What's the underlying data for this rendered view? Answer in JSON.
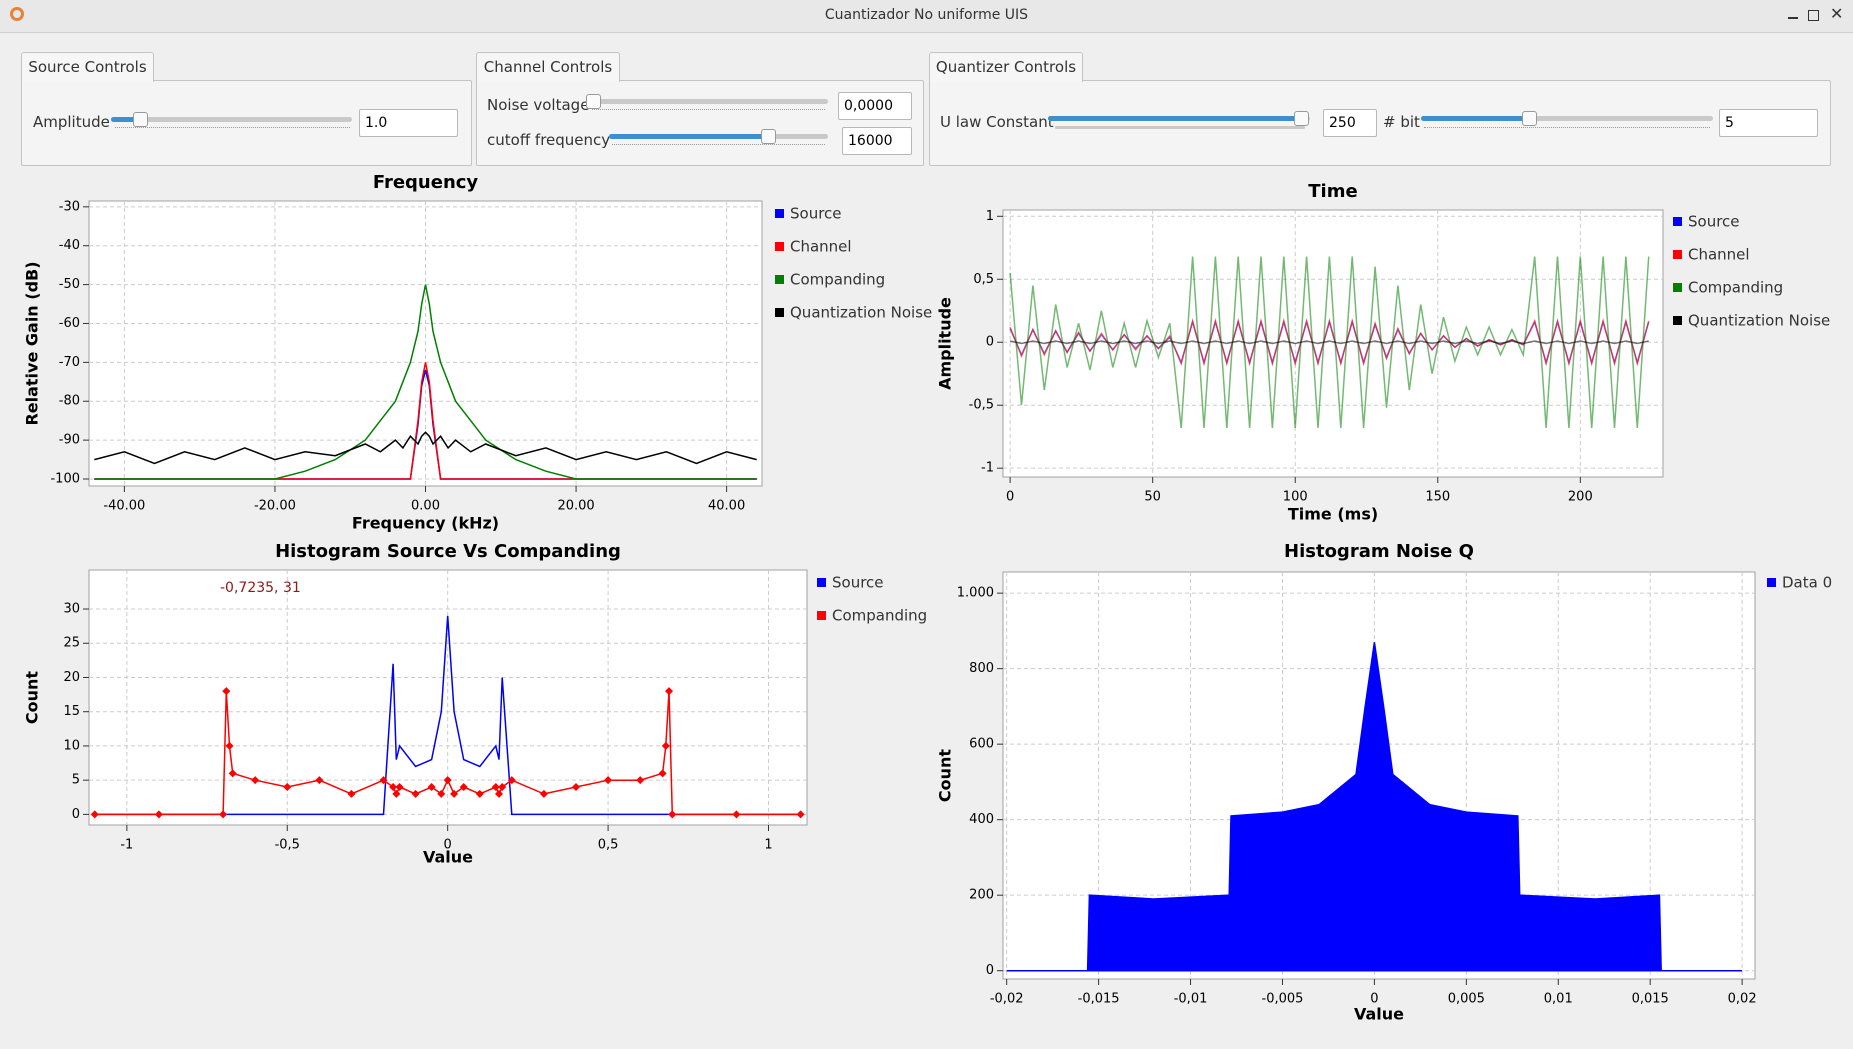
{
  "window": {
    "title": "Cuantizador No uniforme UIS"
  },
  "source_controls": {
    "tab": "Source Controls",
    "amplitude_label": "Amplitude",
    "amplitude_value": "1.0"
  },
  "channel_controls": {
    "tab": "Channel Controls",
    "noise_label": "Noise voltage",
    "noise_value": "0,0000",
    "cutoff_label": "cutoff frequency",
    "cutoff_value": "16000"
  },
  "quantizer_controls": {
    "tab": "Quantizer Controls",
    "ulaw_label": "U law Constant",
    "ulaw_value": "250",
    "bit_label": "# bit",
    "bit_value": "5"
  },
  "chart_data": [
    {
      "type": "line",
      "title": "Frequency",
      "x_label": "Frequency (kHz)",
      "y_label": "Relative Gain (dB)",
      "grid": true,
      "xlim": [
        -44.7,
        44.7
      ],
      "ylim": [
        -101.8,
        -28.5
      ],
      "xticks": [
        {
          "value": -40,
          "label": "-40.00"
        },
        {
          "value": -20,
          "label": "-20.00"
        },
        {
          "value": 0,
          "label": "0.00"
        },
        {
          "value": 20,
          "label": "20.00"
        },
        {
          "value": 40,
          "label": "40.00"
        }
      ],
      "yticks": [
        -30,
        -40,
        -50,
        -60,
        -70,
        -80,
        -90,
        -100
      ],
      "x": [
        -44,
        -40,
        -36,
        -32,
        -28,
        -24,
        -20,
        -16,
        -12,
        -8,
        -6,
        -4,
        -3,
        -2,
        -1,
        -0.5,
        0,
        0.5,
        1,
        2,
        3,
        4,
        6,
        8,
        12,
        16,
        20,
        24,
        28,
        32,
        36,
        40,
        44
      ],
      "series": [
        {
          "name": "Source",
          "color": "#0000ff",
          "values": [
            -100,
            -100,
            -100,
            -100,
            -100,
            -100,
            -100,
            -100,
            -100,
            -100,
            -100,
            -100,
            -100,
            -100,
            -86,
            -76,
            -72,
            -76,
            -86,
            -100,
            -100,
            -100,
            -100,
            -100,
            -100,
            -100,
            -100,
            -100,
            -100,
            -100,
            -100,
            -100,
            -100
          ]
        },
        {
          "name": "Channel",
          "color": "#ff0000",
          "values": [
            -100,
            -100,
            -100,
            -100,
            -100,
            -100,
            -100,
            -100,
            -100,
            -100,
            -100,
            -100,
            -100,
            -100,
            -85,
            -75,
            -70,
            -75,
            -85,
            -100,
            -100,
            -100,
            -100,
            -100,
            -100,
            -100,
            -100,
            -100,
            -100,
            -100,
            -100,
            -100,
            -100
          ]
        },
        {
          "name": "Companding",
          "color": "#008000",
          "values": [
            -100,
            -100,
            -100,
            -100,
            -100,
            -100,
            -100,
            -98,
            -95,
            -90,
            -85,
            -80,
            -75,
            -70,
            -62,
            -55,
            -50,
            -55,
            -62,
            -70,
            -75,
            -80,
            -85,
            -90,
            -95,
            -98,
            -100,
            -100,
            -100,
            -100,
            -100,
            -100,
            -100
          ]
        },
        {
          "name": "Quantization Noise",
          "color": "#000000",
          "values": [
            -95,
            -93,
            -96,
            -93,
            -95,
            -92,
            -95,
            -93,
            -94,
            -91,
            -93,
            -90,
            -92,
            -89,
            -91,
            -89,
            -88,
            -89,
            -91,
            -89,
            -92,
            -90,
            -93,
            -91,
            -94,
            -92,
            -95,
            -93,
            -95,
            -93,
            -96,
            -93,
            -95
          ]
        }
      ]
    },
    {
      "type": "line",
      "title": "Time",
      "x_label": "Time (ms)",
      "y_label": "Amplitude",
      "grid": true,
      "xlim": [
        -2.5,
        229
      ],
      "ylim": [
        -1.07,
        1.05
      ],
      "xticks": [
        0,
        50,
        100,
        150,
        200
      ],
      "yticks": [
        1,
        {
          "value": 0.5,
          "label": "0,5"
        },
        0,
        {
          "value": -0.5,
          "label": "-0,5"
        },
        -1
      ],
      "x": [
        0,
        4,
        8,
        12,
        16,
        20,
        24,
        28,
        32,
        36,
        40,
        44,
        48,
        52,
        56,
        60,
        64,
        68,
        72,
        76,
        80,
        84,
        88,
        92,
        96,
        100,
        104,
        108,
        112,
        116,
        120,
        124,
        128,
        132,
        136,
        140,
        144,
        148,
        152,
        156,
        160,
        164,
        168,
        172,
        176,
        180,
        184,
        188,
        192,
        196,
        200,
        204,
        208,
        212,
        216,
        220,
        224
      ],
      "series": [
        {
          "name": "Source",
          "color": "#0000ff",
          "values": [
            0.11,
            -0.1,
            0.1,
            -0.09,
            0.09,
            -0.08,
            0.07,
            -0.07,
            0.06,
            -0.06,
            0.06,
            -0.05,
            0.05,
            -0.05,
            0.04,
            -0.16,
            0.16,
            -0.16,
            0.16,
            -0.16,
            0.16,
            -0.16,
            0.16,
            -0.16,
            0.16,
            -0.16,
            0.16,
            -0.16,
            0.16,
            -0.16,
            0.16,
            -0.16,
            0.14,
            -0.12,
            0.1,
            -0.09,
            0.07,
            -0.06,
            0.05,
            -0.04,
            0.03,
            -0.03,
            0.02,
            -0.02,
            0.02,
            -0.02,
            0.16,
            -0.16,
            0.16,
            -0.16,
            0.16,
            -0.16,
            0.16,
            -0.16,
            0.16,
            -0.16,
            0.16
          ]
        },
        {
          "name": "Channel",
          "color": "#ff0000",
          "values": [
            0.12,
            -0.11,
            0.1,
            -0.1,
            0.09,
            -0.08,
            0.08,
            -0.07,
            0.07,
            -0.06,
            0.06,
            -0.06,
            0.05,
            -0.05,
            0.05,
            -0.17,
            0.17,
            -0.17,
            0.17,
            -0.17,
            0.17,
            -0.17,
            0.17,
            -0.17,
            0.17,
            -0.17,
            0.17,
            -0.17,
            0.17,
            -0.17,
            0.17,
            -0.17,
            0.15,
            -0.13,
            0.11,
            -0.09,
            0.07,
            -0.06,
            0.05,
            -0.04,
            0.03,
            -0.03,
            0.02,
            -0.02,
            0.02,
            -0.02,
            0.17,
            -0.17,
            0.17,
            -0.17,
            0.17,
            -0.17,
            0.17,
            -0.17,
            0.17,
            -0.17,
            0.17
          ]
        },
        {
          "name": "Companding",
          "color": "#008000",
          "values": [
            0.55,
            -0.5,
            0.45,
            -0.38,
            0.3,
            -0.2,
            0.15,
            -0.22,
            0.25,
            -0.2,
            0.15,
            -0.2,
            0.17,
            -0.12,
            0.15,
            -0.68,
            0.68,
            -0.68,
            0.68,
            -0.68,
            0.68,
            -0.68,
            0.68,
            -0.68,
            0.68,
            -0.68,
            0.68,
            -0.68,
            0.68,
            -0.68,
            0.68,
            -0.68,
            0.6,
            -0.52,
            0.45,
            -0.38,
            0.3,
            -0.25,
            0.2,
            -0.15,
            0.12,
            -0.1,
            0.12,
            -0.1,
            0.1,
            -0.1,
            0.68,
            -0.68,
            0.68,
            -0.68,
            0.68,
            -0.68,
            0.68,
            -0.68,
            0.68,
            -0.68,
            0.68
          ]
        },
        {
          "name": "Quantization Noise",
          "color": "#000000",
          "values": [
            0.01,
            -0.01,
            0.01,
            -0.01,
            0.01,
            -0.01,
            0.01,
            -0.01,
            0.01,
            -0.01,
            0.01,
            -0.01,
            0.01,
            -0.01,
            0.01,
            -0.01,
            0.01,
            -0.01,
            0.01,
            -0.01,
            0.01,
            -0.01,
            0.01,
            -0.01,
            0.01,
            -0.01,
            0.01,
            -0.01,
            0.01,
            -0.01,
            0.01,
            -0.01,
            0.01,
            -0.01,
            0.01,
            -0.01,
            0.01,
            -0.01,
            0.01,
            -0.01,
            0.01,
            -0.01,
            0.01,
            -0.01,
            0.01,
            -0.01,
            0.01,
            -0.01,
            0.01,
            -0.01,
            0.01,
            -0.01,
            0.01,
            -0.01,
            0.01,
            -0.01,
            0.01
          ]
        }
      ]
    },
    {
      "type": "line",
      "title": "Histogram Source Vs Companding",
      "x_label": "Value",
      "y_label": "Count",
      "grid": true,
      "annotation": "-0,7235, 31",
      "xlim": [
        -1.118,
        1.12
      ],
      "ylim": [
        -1.55,
        35.7
      ],
      "xticks": [
        -1,
        {
          "value": -0.5,
          "label": "-0,5"
        },
        0,
        {
          "value": 0.5,
          "label": "0,5"
        },
        1
      ],
      "yticks": [
        0,
        5,
        10,
        15,
        20,
        25,
        30
      ],
      "x": [
        -1.1,
        -0.9,
        -0.7,
        -0.69,
        -0.68,
        -0.67,
        -0.6,
        -0.5,
        -0.4,
        -0.3,
        -0.2,
        -0.17,
        -0.16,
        -0.15,
        -0.1,
        -0.05,
        -0.02,
        0,
        0.02,
        0.05,
        0.1,
        0.15,
        0.16,
        0.17,
        0.2,
        0.3,
        0.4,
        0.5,
        0.6,
        0.67,
        0.68,
        0.69,
        0.7,
        0.9,
        1.1
      ],
      "series": [
        {
          "name": "Source",
          "color": "#0000ff",
          "values": [
            0,
            0,
            0,
            0,
            0,
            0,
            0,
            0,
            0,
            0,
            0,
            22,
            8,
            10,
            7,
            8,
            15,
            29,
            15,
            8,
            7,
            10,
            8,
            20,
            0,
            0,
            0,
            0,
            0,
            0,
            0,
            0,
            0,
            0,
            0
          ]
        },
        {
          "name": "Companding",
          "color": "#ff0000",
          "marker": "diamond",
          "values": [
            0,
            0,
            0,
            18,
            10,
            6,
            5,
            4,
            5,
            3,
            5,
            4,
            3,
            4,
            3,
            4,
            3,
            5,
            3,
            4,
            3,
            4,
            3,
            4,
            5,
            3,
            4,
            5,
            5,
            6,
            10,
            18,
            0,
            0,
            0
          ]
        }
      ]
    },
    {
      "type": "area",
      "title": "Histogram Noise Q",
      "x_label": "Value",
      "y_label": "Count",
      "grid": true,
      "xlim": [
        -0.0202,
        0.0207
      ],
      "ylim": [
        -22,
        1056
      ],
      "xticks": [
        {
          "value": -0.02,
          "label": "-0,02"
        },
        {
          "value": -0.015,
          "label": "-0,015"
        },
        {
          "value": -0.01,
          "label": "-0,01"
        },
        {
          "value": -0.005,
          "label": "-0,005"
        },
        0,
        {
          "value": 0.005,
          "label": "0,005"
        },
        {
          "value": 0.01,
          "label": "0,01"
        },
        {
          "value": 0.015,
          "label": "0,015"
        },
        {
          "value": 0.02,
          "label": "0,02"
        }
      ],
      "yticks": [
        0,
        200,
        400,
        600,
        800,
        {
          "value": 1000,
          "label": "1.000"
        }
      ],
      "x": [
        -0.02,
        -0.0156,
        -0.0155,
        -0.012,
        -0.008,
        -0.0079,
        -0.0078,
        -0.005,
        -0.003,
        -0.001,
        -0.0005,
        0,
        0.0005,
        0.001,
        0.003,
        0.005,
        0.0078,
        0.0079,
        0.008,
        0.012,
        0.0155,
        0.0156,
        0.02
      ],
      "series": [
        {
          "name": "Data 0",
          "color": "#0000ff",
          "values": [
            0,
            0,
            200,
            190,
            200,
            200,
            410,
            420,
            440,
            520,
            700,
            870,
            700,
            520,
            440,
            420,
            410,
            200,
            200,
            190,
            200,
            0,
            0
          ]
        }
      ]
    }
  ]
}
